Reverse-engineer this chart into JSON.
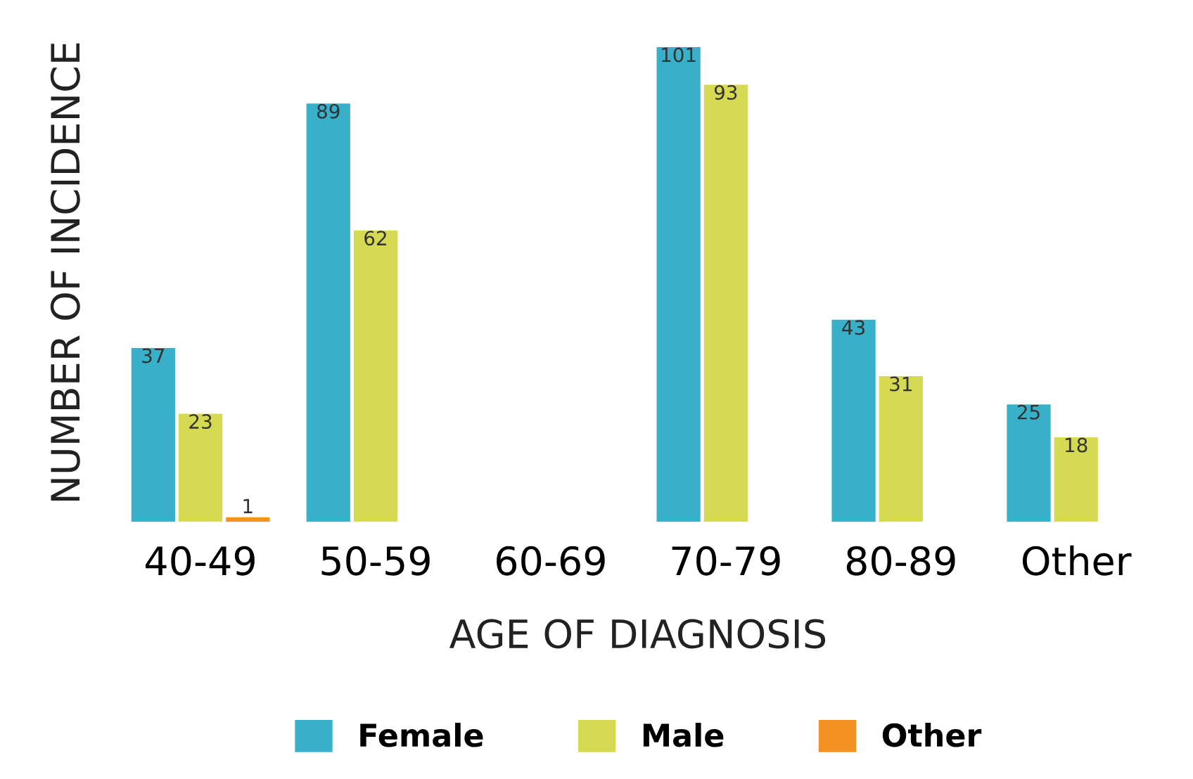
{
  "chart_data": {
    "type": "bar",
    "xlabel": "AGE OF DIAGNOSIS",
    "ylabel": "NUMBER OF INCIDENCE",
    "categories": [
      "40-49",
      "50-59",
      "60-69",
      "70-79",
      "80-89",
      "Other"
    ],
    "series": [
      {
        "name": "Female",
        "color": "#38b0c9",
        "values": [
          37,
          89,
          null,
          101,
          43,
          25
        ]
      },
      {
        "name": "Male",
        "color": "#d6d952",
        "values": [
          23,
          62,
          null,
          93,
          31,
          18
        ]
      },
      {
        "name": "Other",
        "color": "#f39223",
        "values": [
          1,
          null,
          null,
          null,
          null,
          null
        ]
      }
    ],
    "data_labels": true,
    "legend": "bottom",
    "grid": false
  }
}
